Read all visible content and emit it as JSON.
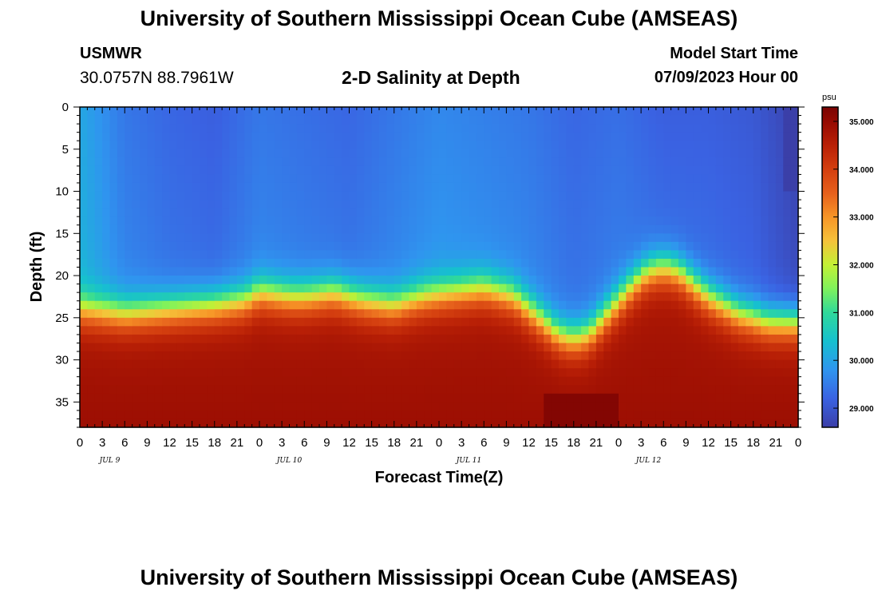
{
  "title": "University of Southern Mississippi Ocean Cube (AMSEAS)",
  "footer_title": "University of Southern Mississippi Ocean Cube (AMSEAS)",
  "station": {
    "name": "USMWR",
    "coords": "30.0757N  88.7961W"
  },
  "model_start": {
    "label": "Model Start Time",
    "value": "07/09/2023 Hour 00"
  },
  "chart_data": {
    "type": "heatmap",
    "title": "2-D Salinity at Depth",
    "xlabel": "Forecast Time(Z)",
    "ylabel": "Depth (ft)",
    "x_tick_labels": [
      "0",
      "3",
      "6",
      "9",
      "12",
      "15",
      "18",
      "21",
      "0",
      "3",
      "6",
      "9",
      "12",
      "15",
      "18",
      "21",
      "0",
      "3",
      "6",
      "9",
      "12",
      "15",
      "18",
      "21",
      "0",
      "3",
      "6",
      "9",
      "12",
      "15",
      "18",
      "21",
      "0"
    ],
    "x_hours_range": [
      0,
      96
    ],
    "date_labels": [
      {
        "label": "JUL 9",
        "hour": 4
      },
      {
        "label": "JUL 10",
        "hour": 28
      },
      {
        "label": "JUL 11",
        "hour": 52
      },
      {
        "label": "JUL 12",
        "hour": 76
      }
    ],
    "y_ticks": [
      0,
      5,
      10,
      15,
      20,
      25,
      30,
      35
    ],
    "y_range": [
      0,
      38
    ],
    "colorbar": {
      "unit": "psu",
      "ticks": [
        "35.000",
        "34.000",
        "33.000",
        "32.000",
        "31.000",
        "30.000",
        "29.000"
      ],
      "range": [
        28.6,
        35.3
      ]
    },
    "colormap": [
      {
        "v": 28.6,
        "c": "#3b3fa8"
      },
      {
        "v": 29.2,
        "c": "#3a62e2"
      },
      {
        "v": 29.8,
        "c": "#2f95ef"
      },
      {
        "v": 30.4,
        "c": "#16c0cf"
      },
      {
        "v": 31.0,
        "c": "#2fd99a"
      },
      {
        "v": 31.5,
        "c": "#7ff25c"
      },
      {
        "v": 32.0,
        "c": "#c3f035"
      },
      {
        "v": 32.5,
        "c": "#f6c23a"
      },
      {
        "v": 33.0,
        "c": "#f79527"
      },
      {
        "v": 33.5,
        "c": "#e6601c"
      },
      {
        "v": 34.0,
        "c": "#d43f0f"
      },
      {
        "v": 34.5,
        "c": "#b92006"
      },
      {
        "v": 35.0,
        "c": "#950a02"
      },
      {
        "v": 35.3,
        "c": "#7a0403"
      }
    ],
    "field_model": {
      "surface_salinity_key_hours": [
        0,
        6,
        12,
        18,
        24,
        30,
        36,
        42,
        48,
        54,
        60,
        66,
        72,
        78,
        84,
        90,
        93,
        96
      ],
      "surface_salinity_values": [
        30.2,
        29.6,
        29.4,
        29.3,
        29.6,
        29.5,
        29.4,
        29.6,
        29.8,
        29.7,
        29.6,
        29.4,
        29.5,
        29.3,
        29.3,
        29.2,
        29.0,
        28.8
      ],
      "halocline_depth_key_hours": [
        0,
        6,
        12,
        18,
        22,
        24,
        28,
        30,
        34,
        38,
        42,
        46,
        50,
        54,
        58,
        60,
        62,
        64,
        66,
        68,
        70,
        72,
        74,
        76,
        78,
        80,
        82,
        84,
        86,
        88,
        90,
        92,
        96
      ],
      "halocline_depth_values": [
        24.0,
        24.5,
        24.0,
        23.5,
        23.0,
        22.0,
        22.5,
        22.5,
        22.0,
        23.0,
        23.5,
        22.5,
        22.0,
        21.5,
        22.5,
        24.0,
        25.5,
        27.0,
        27.5,
        27.0,
        25.0,
        23.0,
        21.0,
        19.5,
        19.0,
        19.5,
        21.0,
        22.5,
        23.5,
        24.5,
        25.0,
        25.5,
        25.5
      ],
      "bottom_salinity": 34.7,
      "dark_surface_patch": {
        "hour_start": 94,
        "hour_end": 96,
        "depth_end": 10,
        "value": 28.6
      },
      "dense_bottom_patch": {
        "hour_start": 62,
        "hour_end": 72,
        "depth_start": 34,
        "value": 35.2
      }
    }
  }
}
